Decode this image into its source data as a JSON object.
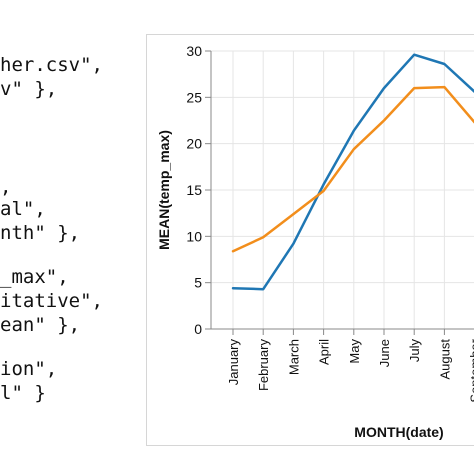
{
  "code_lines": [
    "her.csv\",",
    "v\" },",
    "",
    "",
    ",",
    "al\",",
    "nth\" },",
    "",
    "_max\",",
    "itative\",",
    "ean\" },",
    "",
    "ion\",",
    "l\" }"
  ],
  "chart_data": {
    "type": "line",
    "xlabel": "MONTH(date)",
    "ylabel": "MEAN(temp_max)",
    "categories": [
      "January",
      "February",
      "March",
      "April",
      "May",
      "June",
      "July",
      "August",
      "September"
    ],
    "y_ticks": [
      "0",
      "5",
      "10",
      "15",
      "20",
      "25",
      "30"
    ],
    "ylim": [
      0,
      30
    ],
    "grid": true,
    "colors": {
      "series_1": "#1f77b4",
      "series_2": "#f28e1c",
      "grid": "#e5e5e5",
      "axis": "#888888"
    },
    "series": [
      {
        "values": [
          4.4,
          4.3,
          9.2,
          15.6,
          21.4,
          26.0,
          29.6,
          28.6,
          25.6
        ]
      },
      {
        "values": [
          8.4,
          9.9,
          12.4,
          14.9,
          19.4,
          22.5,
          26.0,
          26.1,
          22.3
        ]
      }
    ]
  }
}
